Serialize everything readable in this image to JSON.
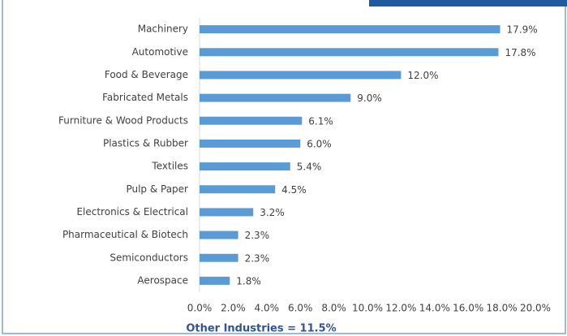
{
  "chart_data": {
    "type": "bar",
    "orientation": "horizontal",
    "categories": [
      "Machinery",
      "Automotive",
      "Food & Beverage",
      "Fabricated Metals",
      "Furniture & Wood Products",
      "Plastics & Rubber",
      "Textiles",
      "Pulp & Paper",
      "Electronics & Electrical",
      "Pharmaceutical & Biotech",
      "Semiconductors",
      "Aerospace"
    ],
    "values": [
      17.9,
      17.8,
      12.0,
      9.0,
      6.1,
      6.0,
      5.4,
      4.5,
      3.2,
      2.3,
      2.3,
      1.8
    ],
    "value_labels": [
      "17.9%",
      "17.8%",
      "12.0%",
      "9.0%",
      "6.1%",
      "6.0%",
      "5.4%",
      "4.5%",
      "3.2%",
      "2.3%",
      "2.3%",
      "1.8%"
    ],
    "color": "#5b9bd5",
    "xlim": [
      0,
      20
    ],
    "xticks": [
      {
        "value": 0,
        "label": "0.0%"
      },
      {
        "value": 2,
        "label": "2.0%"
      },
      {
        "value": 4,
        "label": "4.0%"
      },
      {
        "value": 6,
        "label": "6.0%"
      },
      {
        "value": 8,
        "label": "8.0%"
      },
      {
        "value": 10,
        "label": "10.0%"
      },
      {
        "value": 12,
        "label": "12.0%"
      },
      {
        "value": 14,
        "label": "14.0%"
      },
      {
        "value": 16,
        "label": "16.0%"
      },
      {
        "value": 18,
        "label": "18.0%"
      },
      {
        "value": 20,
        "label": "20.0%"
      }
    ],
    "grid": false,
    "annotation": "Other Industries = 11.5%"
  }
}
